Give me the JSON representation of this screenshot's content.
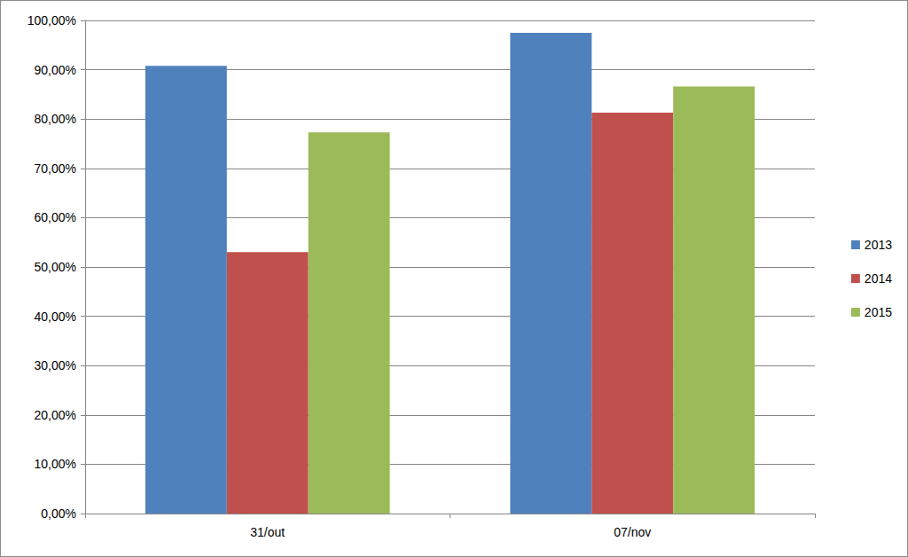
{
  "chart_data": {
    "type": "bar",
    "categories": [
      "31/out",
      "07/nov"
    ],
    "series": [
      {
        "name": "2013",
        "color": "#4f81bd",
        "values": [
          90.8,
          97.5
        ]
      },
      {
        "name": "2014",
        "color": "#c0504d",
        "values": [
          53.0,
          81.3
        ]
      },
      {
        "name": "2015",
        "color": "#9bbb59",
        "values": [
          77.3,
          86.6
        ]
      }
    ],
    "ylim": [
      0,
      100
    ],
    "yticks": [
      {
        "value": 0,
        "label": "0,00%"
      },
      {
        "value": 10,
        "label": "10,00%"
      },
      {
        "value": 20,
        "label": "20,00%"
      },
      {
        "value": 30,
        "label": "30,00%"
      },
      {
        "value": 40,
        "label": "40,00%"
      },
      {
        "value": 50,
        "label": "50,00%"
      },
      {
        "value": 60,
        "label": "60,00%"
      },
      {
        "value": 70,
        "label": "70,00%"
      },
      {
        "value": 80,
        "label": "80,00%"
      },
      {
        "value": 90,
        "label": "90,00%"
      },
      {
        "value": 100,
        "label": "100,00%"
      }
    ],
    "grid": true,
    "legend": "right"
  }
}
